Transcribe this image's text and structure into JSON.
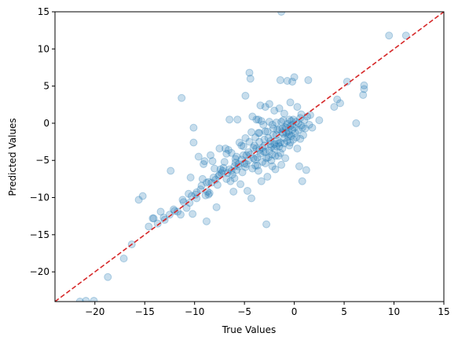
{
  "chart_data": {
    "type": "scatter",
    "xlabel": "True Values",
    "ylabel": "Predicted Values",
    "xlim": [
      -24,
      15
    ],
    "ylim": [
      -24,
      15
    ],
    "xticks": [
      -20,
      -15,
      -10,
      -5,
      0,
      5,
      10,
      15
    ],
    "yticks": [
      -20,
      -15,
      -10,
      -5,
      0,
      5,
      10,
      15
    ],
    "xtick_labels": [
      "−20",
      "−15",
      "−10",
      "−5",
      "0",
      "5",
      "10",
      "15"
    ],
    "ytick_labels": [
      "−20",
      "−15",
      "−10",
      "−5",
      "0",
      "5",
      "10",
      "15"
    ],
    "grid": false,
    "point_color": "#1f77b4",
    "point_alpha": 0.25,
    "reference_line": {
      "from": [
        -24,
        -24
      ],
      "to": [
        15,
        15
      ],
      "color": "#d62728",
      "style": "dashed"
    },
    "points": [
      [
        -21.5,
        -24
      ],
      [
        -20.9,
        -23.9
      ],
      [
        -20.1,
        -23.9
      ],
      [
        -18.7,
        -20.7
      ],
      [
        -17.1,
        -18.2
      ],
      [
        -16.3,
        -16.3
      ],
      [
        -15.6,
        -10.3
      ],
      [
        -15.2,
        -9.8
      ],
      [
        -14.6,
        -13.9
      ],
      [
        -14.2,
        -12.8
      ],
      [
        -14.1,
        -12.8
      ],
      [
        -13.7,
        -13.5
      ],
      [
        -13.4,
        -11.9
      ],
      [
        -13.1,
        -12.7
      ],
      [
        -12.5,
        -12.3
      ],
      [
        -12.4,
        -6.4
      ],
      [
        -12.1,
        -11.6
      ],
      [
        -11.7,
        -11.9
      ],
      [
        -11.4,
        -12.3
      ],
      [
        -11.3,
        3.4
      ],
      [
        -11.1,
        -10.6
      ],
      [
        -10.8,
        -11.4
      ],
      [
        -10.5,
        -10.7
      ],
      [
        -10.2,
        -12.2
      ],
      [
        -10.6,
        -9.5
      ],
      [
        -10.4,
        -7.3
      ],
      [
        -10.1,
        -2.6
      ],
      [
        -10.1,
        -0.6
      ],
      [
        -9.8,
        -10.1
      ],
      [
        -9.8,
        -9.3
      ],
      [
        -9.6,
        -4.5
      ],
      [
        -9.3,
        -8.4
      ],
      [
        -9.2,
        -7.5
      ],
      [
        -9.1,
        -5.5
      ],
      [
        -9.0,
        -5.1
      ],
      [
        -8.9,
        -9.7
      ],
      [
        -8.8,
        -13.2
      ],
      [
        -8.7,
        -9.2
      ],
      [
        -8.6,
        -9.6
      ],
      [
        -8.5,
        -9.4
      ],
      [
        -8.4,
        -4.3
      ],
      [
        -8.3,
        -8.0
      ],
      [
        -8.2,
        -5.1
      ],
      [
        -8.0,
        -6.1
      ],
      [
        -7.9,
        -7.6
      ],
      [
        -7.8,
        -11.3
      ],
      [
        -7.7,
        -8.3
      ],
      [
        -7.6,
        -7.1
      ],
      [
        -7.5,
        -3.4
      ],
      [
        -7.4,
        -6.2
      ],
      [
        -7.2,
        -6.4
      ],
      [
        -7.1,
        -6.0
      ],
      [
        -7.0,
        -5.2
      ],
      [
        -6.9,
        -3.4
      ],
      [
        -6.8,
        -7.5
      ],
      [
        -6.6,
        -3.6
      ],
      [
        -6.5,
        -6.2
      ],
      [
        -6.4,
        -7.8
      ],
      [
        -6.3,
        -6.4
      ],
      [
        -6.2,
        -6.9
      ],
      [
        -6.1,
        -9.2
      ],
      [
        -6.0,
        -7.4
      ],
      [
        -5.9,
        -5.3
      ],
      [
        -5.8,
        -4.5
      ],
      [
        -5.7,
        0.5
      ],
      [
        -5.6,
        -5.8
      ],
      [
        -5.5,
        -2.6
      ],
      [
        -5.4,
        -8.2
      ],
      [
        -5.3,
        -4.9
      ],
      [
        -5.2,
        -6.6
      ],
      [
        -5.1,
        -3.1
      ],
      [
        -5.0,
        -5.4
      ],
      [
        -4.9,
        -2.0
      ],
      [
        -4.8,
        -4.3
      ],
      [
        -4.7,
        -9.1
      ],
      [
        -4.6,
        -5.0
      ],
      [
        -4.5,
        6.8
      ],
      [
        -4.4,
        6.0
      ],
      [
        -4.3,
        -10.1
      ],
      [
        -4.2,
        -6.1
      ],
      [
        -4.1,
        -4.7
      ],
      [
        -4.0,
        -3.0
      ],
      [
        -3.9,
        -1.9
      ],
      [
        -3.8,
        -3.4
      ],
      [
        -3.7,
        -5.7
      ],
      [
        -3.6,
        -6.4
      ],
      [
        -3.5,
        -2.5
      ],
      [
        -3.4,
        -4.1
      ],
      [
        -3.3,
        -7.8
      ],
      [
        -3.2,
        -5.2
      ],
      [
        -3.1,
        -3.8
      ],
      [
        -3.0,
        -2.2
      ],
      [
        -2.9,
        -1.1
      ],
      [
        -2.8,
        -13.6
      ],
      [
        -2.7,
        -7.2
      ],
      [
        -2.6,
        -4.6
      ],
      [
        -2.5,
        -3.7
      ],
      [
        -2.4,
        -2.8
      ],
      [
        -2.3,
        -5.0
      ],
      [
        -2.2,
        -4.2
      ],
      [
        -2.1,
        -1.6
      ],
      [
        -2.0,
        -3.4
      ],
      [
        -1.9,
        -6.2
      ],
      [
        -1.8,
        -3.1
      ],
      [
        -1.7,
        -2.3
      ],
      [
        -1.6,
        -4.4
      ],
      [
        -1.5,
        -0.8
      ],
      [
        -1.4,
        -2.6
      ],
      [
        -1.3,
        -5.6
      ],
      [
        -1.2,
        -3.4
      ],
      [
        -1.1,
        -1.4
      ],
      [
        -1.0,
        -2.0
      ],
      [
        -0.9,
        -4.7
      ],
      [
        -0.8,
        -0.6
      ],
      [
        -0.7,
        -2.4
      ],
      [
        -0.6,
        -1.1
      ],
      [
        -0.5,
        -3.0
      ],
      [
        -0.4,
        -0.4
      ],
      [
        -0.3,
        -1.7
      ],
      [
        -0.2,
        -0.2
      ],
      [
        -0.1,
        -2.2
      ],
      [
        0.0,
        -0.6
      ],
      [
        0.1,
        -1.3
      ],
      [
        0.2,
        0.2
      ],
      [
        0.3,
        -3.4
      ],
      [
        0.4,
        -0.9
      ],
      [
        0.5,
        -5.8
      ],
      [
        0.6,
        -2.1
      ],
      [
        0.7,
        -0.3
      ],
      [
        0.8,
        -7.8
      ],
      [
        0.9,
        -1.6
      ],
      [
        1.0,
        0.4
      ],
      [
        1.1,
        -0.7
      ],
      [
        1.2,
        -6.3
      ],
      [
        1.3,
        0.9
      ],
      [
        1.4,
        5.8
      ],
      [
        1.5,
        -0.2
      ],
      [
        1.8,
        -0.6
      ],
      [
        2.5,
        0.4
      ],
      [
        4.0,
        2.2
      ],
      [
        4.3,
        3.2
      ],
      [
        4.6,
        2.7
      ],
      [
        5.3,
        5.6
      ],
      [
        6.2,
        0.0
      ],
      [
        6.9,
        3.8
      ],
      [
        7.0,
        4.6
      ],
      [
        7.0,
        5.1
      ],
      [
        9.5,
        11.8
      ],
      [
        11.2,
        11.8
      ],
      [
        -1.3,
        15.0
      ],
      [
        -3.4,
        2.4
      ],
      [
        -2.9,
        2.2
      ],
      [
        -2.5,
        2.6
      ],
      [
        -2.0,
        1.7
      ],
      [
        -1.5,
        2.0
      ],
      [
        -1.0,
        1.3
      ],
      [
        -0.4,
        2.8
      ],
      [
        0.3,
        2.2
      ],
      [
        0.7,
        1.2
      ],
      [
        -1.4,
        5.8
      ],
      [
        -0.7,
        5.7
      ],
      [
        -0.2,
        5.6
      ],
      [
        0.0,
        6.2
      ],
      [
        -4.9,
        3.7
      ],
      [
        -3.8,
        0.5
      ],
      [
        -3.3,
        0.3
      ],
      [
        -6.5,
        0.5
      ],
      [
        -3.6,
        -1.3
      ],
      [
        -2.2,
        -0.2
      ],
      [
        -1.1,
        0.4
      ],
      [
        -0.5,
        0.5
      ],
      [
        -1.7,
        -0.9
      ],
      [
        -0.9,
        -0.5
      ],
      [
        -0.3,
        0.3
      ],
      [
        -0.6,
        -1.8
      ],
      [
        -1.2,
        -1.2
      ],
      [
        -2.0,
        -2.8
      ],
      [
        -2.6,
        -2.0
      ],
      [
        -3.0,
        -3.0
      ],
      [
        -3.5,
        -3.6
      ],
      [
        -4.1,
        -3.3
      ],
      [
        -4.6,
        -3.9
      ],
      [
        -5.1,
        -4.3
      ],
      [
        -1.9,
        -4.4
      ],
      [
        -2.8,
        -4.7
      ],
      [
        -3.9,
        -4.9
      ],
      [
        -1.5,
        -3.1
      ],
      [
        -0.8,
        -1.3
      ],
      [
        -0.2,
        -0.9
      ],
      [
        0.4,
        0.0
      ],
      [
        -6.0,
        -5.8
      ],
      [
        -5.6,
        -5.5
      ],
      [
        -4.4,
        -4.2
      ],
      [
        -3.2,
        -3.3
      ],
      [
        -2.4,
        -2.4
      ],
      [
        -1.8,
        -1.6
      ],
      [
        -1.2,
        -0.7
      ],
      [
        -0.7,
        -0.1
      ],
      [
        -0.1,
        0.5
      ],
      [
        0.6,
        0.7
      ],
      [
        -7.3,
        -6.7
      ],
      [
        -6.7,
        -6.7
      ],
      [
        -5.9,
        -4.8
      ],
      [
        -4.8,
        -5.5
      ],
      [
        -3.7,
        -4.6
      ],
      [
        -2.9,
        -3.9
      ],
      [
        -2.3,
        -3.2
      ],
      [
        -1.6,
        -2.7
      ],
      [
        -1.0,
        -2.7
      ],
      [
        -0.5,
        -1.5
      ],
      [
        -4.3,
        -1.2
      ],
      [
        -3.5,
        -1.3
      ],
      [
        -2.7,
        -1.1
      ],
      [
        -2.1,
        -0.7
      ],
      [
        -1.8,
        0.1
      ],
      [
        -1.3,
        0.2
      ],
      [
        -4.2,
        0.9
      ],
      [
        -3.6,
        0.5
      ],
      [
        -8.6,
        -7.9
      ],
      [
        -8.1,
        -7.3
      ],
      [
        -9.4,
        -8.9
      ],
      [
        -9.9,
        -9.6
      ],
      [
        -11.2,
        -10.3
      ],
      [
        -12.0,
        -11.8
      ],
      [
        -13.0,
        -13.0
      ],
      [
        -6.3,
        -4.0
      ],
      [
        -5.3,
        -3.0
      ],
      [
        -4.5,
        -2.5
      ],
      [
        -6.8,
        -4.1
      ],
      [
        -7.5,
        -6.9
      ],
      [
        -8.8,
        -8.0
      ],
      [
        -10.3,
        -9.8
      ],
      [
        -2.2,
        -5.8
      ],
      [
        -1.4,
        -4.0
      ],
      [
        -0.4,
        -2.6
      ],
      [
        0.2,
        -1.9
      ],
      [
        0.8,
        -0.6
      ],
      [
        1.6,
        1.1
      ],
      [
        -3.1,
        -0.2
      ],
      [
        -2.5,
        0.2
      ],
      [
        -5.8,
        -6.3
      ],
      [
        -4.9,
        -5.9
      ],
      [
        -3.9,
        -5.7
      ],
      [
        -2.9,
        -5.4
      ]
    ]
  }
}
